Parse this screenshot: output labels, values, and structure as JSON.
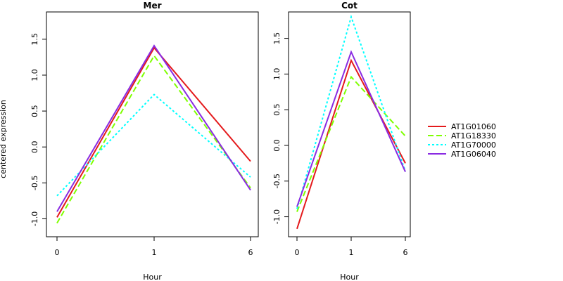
{
  "figure": {
    "ylabel": "centered expression",
    "legend": {
      "placement": "right",
      "entries": [
        {
          "name": "AT1G01060",
          "color": "#E41A1C",
          "dash": "solid"
        },
        {
          "name": "AT1G18330",
          "color": "#7FFF00",
          "dash": "dashed"
        },
        {
          "name": "AT1G70000",
          "color": "#00FFFF",
          "dash": "dotted"
        },
        {
          "name": "AT1G06040",
          "color": "#8A2BE2",
          "dash": "solid"
        }
      ]
    }
  },
  "chart_data": [
    {
      "type": "line",
      "title": "Mer",
      "xlabel": "Hour",
      "ylabel": "centered expression",
      "categories": [
        "0",
        "1",
        "6"
      ],
      "ylim": [
        -1.25,
        1.88
      ],
      "yticks": [
        "-1.0",
        "-0.5",
        "0.0",
        "0.5",
        "1.0",
        "1.5"
      ],
      "ytick_values": [
        -1.0,
        -0.5,
        0.0,
        0.5,
        1.0,
        1.5
      ],
      "grid": false,
      "series": [
        {
          "name": "AT1G01060",
          "values": [
            -0.98,
            1.38,
            -0.2
          ],
          "color": "#E41A1C",
          "dash": "solid"
        },
        {
          "name": "AT1G18330",
          "values": [
            -1.06,
            1.27,
            -0.57
          ],
          "color": "#7FFF00",
          "dash": "dashed"
        },
        {
          "name": "AT1G70000",
          "values": [
            -0.68,
            0.73,
            -0.42
          ],
          "color": "#00FFFF",
          "dash": "dotted"
        },
        {
          "name": "AT1G06040",
          "values": [
            -0.9,
            1.41,
            -0.6
          ],
          "color": "#8A2BE2",
          "dash": "solid"
        }
      ]
    },
    {
      "type": "line",
      "title": "Cot",
      "xlabel": "Hour",
      "ylabel": "",
      "categories": [
        "0",
        "1",
        "6"
      ],
      "ylim": [
        -1.28,
        1.87
      ],
      "yticks": [
        "-1.0",
        "-0.5",
        "0.0",
        "0.5",
        "1.0",
        "1.5"
      ],
      "ytick_values": [
        -1.0,
        -0.5,
        0.0,
        0.5,
        1.0,
        1.5
      ],
      "grid": false,
      "series": [
        {
          "name": "AT1G01060",
          "values": [
            -1.17,
            1.19,
            -0.25
          ],
          "color": "#E41A1C",
          "dash": "solid"
        },
        {
          "name": "AT1G18330",
          "values": [
            -0.93,
            0.96,
            0.13
          ],
          "color": "#7FFF00",
          "dash": "dashed"
        },
        {
          "name": "AT1G70000",
          "values": [
            -0.89,
            1.8,
            -0.36
          ],
          "color": "#00FFFF",
          "dash": "dotted"
        },
        {
          "name": "AT1G06040",
          "values": [
            -0.86,
            1.31,
            -0.37
          ],
          "color": "#8A2BE2",
          "dash": "solid"
        }
      ]
    }
  ]
}
